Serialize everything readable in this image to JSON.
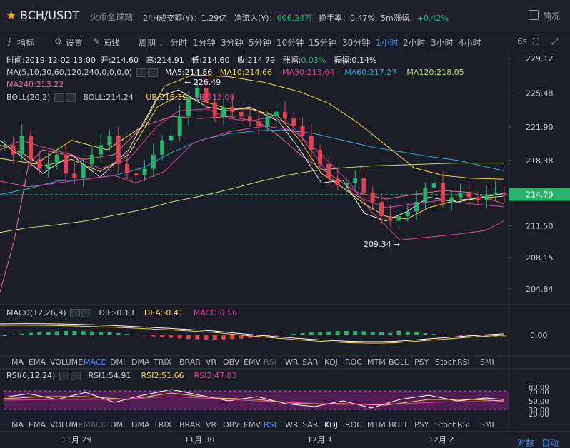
{
  "header": {
    "pair": "BCH/USDT",
    "exchange": "火币全球站",
    "volume_label": "24H成交额(¥)",
    "volume_value": "1.29亿",
    "inflow_label": "净流入(¥)",
    "inflow_value": "606.24万",
    "turnover_label": "换手率",
    "turnover_value": "0.47%",
    "change5m_label": "5m涨幅",
    "change5m_value": "+0.42%",
    "simplified_label": "简况"
  },
  "toolbar": {
    "indicator_label": "指标",
    "settings_label": "设置",
    "draw_label": "画线",
    "period_label": "周期",
    "periods": [
      "分时",
      "1分钟",
      "3分钟",
      "5分钟",
      "10分钟",
      "15分钟",
      "30分钟",
      "1小时",
      "2小时",
      "3小时",
      "4小时"
    ],
    "active_period": "1小时",
    "refresh_label": "6s"
  },
  "ohlc": {
    "time": "时间:2019-12-02 13:00",
    "open": "开:214.60",
    "high": "高:214.91",
    "low": "低:214.60",
    "close": "收:214.79",
    "change_label": "涨幅:",
    "change_value": "0.03%",
    "amplitude": "振幅:0.14%"
  },
  "ma": {
    "label": "MA(5,10,30,60,120,240,0,0,0,0)",
    "ma5": "MA5:214.86",
    "ma10": "MA10:214.66",
    "ma30": "MA30:213.64",
    "ma60": "MA60:217.27",
    "ma120": "MA120:218.05",
    "ma240": "MA240:213.22"
  },
  "boll": {
    "label": "BOLL(20,2)",
    "boll": "BOLL:214.24",
    "ub": "UB:216.39",
    "lb": "LB:212.09"
  },
  "price_axis": [
    "229.12",
    "225.48",
    "221.90",
    "218.38",
    "214.79",
    "211.50",
    "208.15",
    "204.84"
  ],
  "current_price": "214.79",
  "annotations": {
    "high": "← 226.49",
    "low": "209.34 →"
  },
  "macd": {
    "label": "MACD(12,26,9)",
    "dif": "DIF:-0.13",
    "dea": "DEA:-0.41",
    "macd": "MACD:0.56",
    "axis_zero": "0.00"
  },
  "indicator_tabs": [
    "MA",
    "EMA",
    "VOLUME",
    "MACD",
    "DMI",
    "DMA",
    "TRIX",
    "BRAR",
    "VR",
    "OBV",
    "EMV",
    "RSI",
    "WR",
    "SAR",
    "KDJ",
    "ROC",
    "MTM",
    "BOLL",
    "PSY",
    "StochRSI",
    "SMI"
  ],
  "rsi": {
    "label": "RSI(6,12,24)",
    "rsi1": "RSI1:54.91",
    "rsi2": "RSI2:51.66",
    "rsi3": "RSI3:47.83",
    "axis": [
      "80.00",
      "70.00",
      "50.00",
      "30.00",
      "20.00"
    ]
  },
  "dates": [
    "11月 29",
    "11月 30",
    "12月 1",
    "12月 2"
  ],
  "footer": {
    "log_label": "对数",
    "auto_label": "自动"
  },
  "colors": {
    "up": "#26b36b",
    "down": "#e0424f",
    "ma5": "#ffffff",
    "ma10": "#f5d547",
    "ma30": "#e040a0",
    "ma60": "#2ea8d8",
    "ma120": "#b7e07a",
    "ma240": "#e86b8e",
    "accent": "#3f8cff",
    "current_price_bg": "#26b36b"
  }
}
